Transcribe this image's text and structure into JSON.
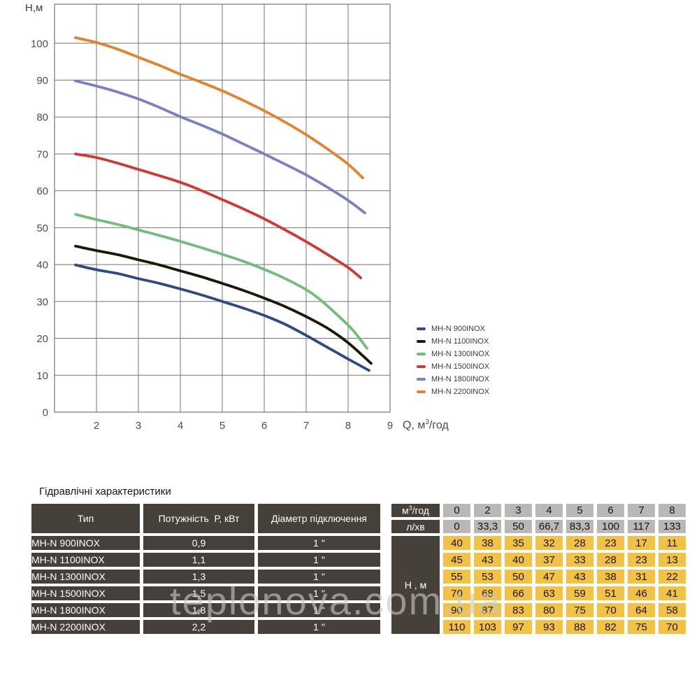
{
  "chart": {
    "y_axis_title": "Н,м",
    "x_axis_title_prefix": "Q, м",
    "x_axis_title_sup": "3",
    "x_axis_title_suffix": "/год"
  },
  "chart_data": {
    "type": "line",
    "title": "",
    "xlabel": "Q, м3/год",
    "ylabel": "Н,м",
    "xlim": [
      1,
      9
    ],
    "ylim": [
      0,
      110.8
    ],
    "x_ticks": [
      2,
      3,
      4,
      5,
      6,
      7,
      8,
      9
    ],
    "y_ticks": [
      0,
      10,
      20,
      30,
      40,
      50,
      60,
      70,
      80,
      90,
      100
    ],
    "grid": true,
    "legend_position": "right-middle",
    "grid_color": "#757575",
    "tick_color": "#4d4d4d",
    "series": [
      {
        "name": "MH-N 900INOX",
        "color": "#2c4a87",
        "points": [
          [
            1.5,
            39.9
          ],
          [
            2,
            38.6
          ],
          [
            2.5,
            37.6
          ],
          [
            3,
            36.2
          ],
          [
            3.5,
            34.9
          ],
          [
            4,
            33.4
          ],
          [
            4.5,
            31.8
          ],
          [
            5,
            30.0
          ],
          [
            5.5,
            28.2
          ],
          [
            6,
            26.2
          ],
          [
            6.5,
            23.8
          ],
          [
            7,
            20.8
          ],
          [
            7.5,
            17.6
          ],
          [
            8,
            14.4
          ],
          [
            8.5,
            11.3
          ]
        ]
      },
      {
        "name": "MH-N 1100INOX",
        "color": "#211507",
        "points": [
          [
            1.5,
            45.0
          ],
          [
            2,
            43.8
          ],
          [
            2.5,
            42.7
          ],
          [
            3,
            41.3
          ],
          [
            3.5,
            39.9
          ],
          [
            4,
            38.3
          ],
          [
            4.5,
            36.7
          ],
          [
            5,
            34.9
          ],
          [
            5.5,
            33.0
          ],
          [
            6,
            30.9
          ],
          [
            6.5,
            28.6
          ],
          [
            7,
            25.9
          ],
          [
            7.5,
            22.8
          ],
          [
            8,
            18.8
          ],
          [
            8.55,
            13.2
          ]
        ]
      },
      {
        "name": "MH-N 1300INOX",
        "color": "#6fbe79",
        "points": [
          [
            1.5,
            53.6
          ],
          [
            2,
            52.2
          ],
          [
            2.5,
            50.9
          ],
          [
            3,
            49.4
          ],
          [
            3.5,
            47.9
          ],
          [
            4,
            46.3
          ],
          [
            4.5,
            44.6
          ],
          [
            5,
            42.8
          ],
          [
            5.5,
            40.9
          ],
          [
            6,
            38.7
          ],
          [
            6.5,
            36.2
          ],
          [
            7,
            33.2
          ],
          [
            7.3,
            30.8
          ],
          [
            7.7,
            26.8
          ],
          [
            8.1,
            22.4
          ],
          [
            8.45,
            17.3
          ]
        ]
      },
      {
        "name": "MH-N 1500INOX",
        "color": "#d23730",
        "points": [
          [
            1.5,
            70.0
          ],
          [
            2,
            69.0
          ],
          [
            2.5,
            67.5
          ],
          [
            3,
            65.8
          ],
          [
            3.5,
            64.1
          ],
          [
            4,
            62.3
          ],
          [
            4.5,
            60.1
          ],
          [
            5,
            57.6
          ],
          [
            5.5,
            55.1
          ],
          [
            6,
            52.4
          ],
          [
            6.5,
            49.4
          ],
          [
            7,
            46.2
          ],
          [
            7.5,
            42.8
          ],
          [
            8,
            39.2
          ],
          [
            8.3,
            36.4
          ]
        ]
      },
      {
        "name": "MH-N 1800INOX",
        "color": "#7b80c6",
        "points": [
          [
            1.5,
            89.8
          ],
          [
            2,
            88.4
          ],
          [
            2.5,
            86.8
          ],
          [
            3,
            84.9
          ],
          [
            3.5,
            82.6
          ],
          [
            4,
            80.1
          ],
          [
            4.5,
            77.8
          ],
          [
            5,
            75.4
          ],
          [
            5.5,
            72.7
          ],
          [
            6,
            70.0
          ],
          [
            6.5,
            67.2
          ],
          [
            7,
            64.3
          ],
          [
            7.5,
            61.0
          ],
          [
            8,
            57.4
          ],
          [
            8.4,
            54.0
          ]
        ]
      },
      {
        "name": "MH-N 2200INOX",
        "color": "#e2832d",
        "points": [
          [
            1.5,
            101.5
          ],
          [
            2,
            100.2
          ],
          [
            2.5,
            98.4
          ],
          [
            3,
            96.2
          ],
          [
            3.5,
            94.0
          ],
          [
            4,
            91.6
          ],
          [
            4.5,
            89.4
          ],
          [
            5,
            87.1
          ],
          [
            5.5,
            84.5
          ],
          [
            6,
            81.7
          ],
          [
            6.5,
            78.6
          ],
          [
            7,
            75.2
          ],
          [
            7.5,
            71.4
          ],
          [
            8,
            67.2
          ],
          [
            8.35,
            63.5
          ]
        ]
      }
    ]
  },
  "table": {
    "title": "Гідравлічні характеристики",
    "colors": {
      "dark": "#45403a",
      "gray": "#b9b8b6",
      "yellow": "#f2c246"
    },
    "header": {
      "type": "Тип",
      "power": "Потужність  Р, кВт",
      "diameter": "Діаметр підключення",
      "flow_m3_prefix": "м",
      "flow_m3_sup": "3",
      "flow_m3_suffix": "/год",
      "flow_l": "л/хв",
      "head_label": "Н , м"
    },
    "flow_m3_values": [
      "0",
      "2",
      "3",
      "4",
      "5",
      "6",
      "7",
      "8"
    ],
    "flow_l_values": [
      "0",
      "33,3",
      "50",
      "66,7",
      "83,3",
      "100",
      "117",
      "133"
    ],
    "rows": [
      {
        "type": "MH-N 900INOX",
        "power": "0,9",
        "diameter": "1 \"",
        "heads": [
          "40",
          "38",
          "35",
          "32",
          "28",
          "23",
          "17",
          "11"
        ]
      },
      {
        "type": "MH-N 1100INOX",
        "power": "1,1",
        "diameter": "1 \"",
        "heads": [
          "45",
          "43",
          "40",
          "37",
          "33",
          "28",
          "23",
          "13"
        ]
      },
      {
        "type": "MH-N 1300INOX",
        "power": "1,3",
        "diameter": "1 \"",
        "heads": [
          "55",
          "53",
          "50",
          "47",
          "43",
          "38",
          "31",
          "22"
        ]
      },
      {
        "type": "MH-N 1500INOX",
        "power": "1,5",
        "diameter": "1 \"",
        "heads": [
          "70",
          "68",
          "66",
          "63",
          "59",
          "51",
          "46",
          "41"
        ]
      },
      {
        "type": "MH-N 1800INOX",
        "power": "1,8",
        "diameter": "1 \"",
        "heads": [
          "90",
          "87",
          "83",
          "80",
          "75",
          "70",
          "64",
          "58"
        ]
      },
      {
        "type": "MH-N 2200INOX",
        "power": "2,2",
        "diameter": "1 \"",
        "heads": [
          "110",
          "103",
          "97",
          "93",
          "88",
          "82",
          "75",
          "70"
        ]
      }
    ]
  },
  "watermark": "teplonova.com.ua"
}
